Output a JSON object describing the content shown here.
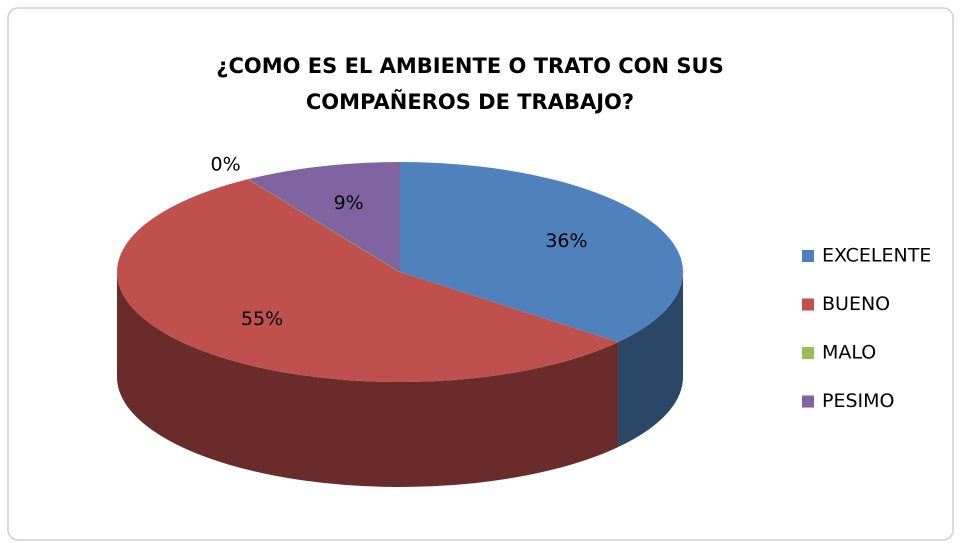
{
  "chart_data": {
    "type": "pie",
    "title": "¿COMO ES EL AMBIENTE O TRATO CON SUS COMPAÑEROS DE TRABAJO?",
    "categories": [
      "EXCELENTE",
      "BUENO",
      "MALO",
      "PESIMO"
    ],
    "values": [
      36,
      55,
      0,
      9
    ],
    "value_labels": [
      "36%",
      "55%",
      "0%",
      "9%"
    ],
    "colors": [
      "#4f81bd",
      "#c0504d",
      "#9bbb59",
      "#8064a2"
    ],
    "legend": "right"
  }
}
